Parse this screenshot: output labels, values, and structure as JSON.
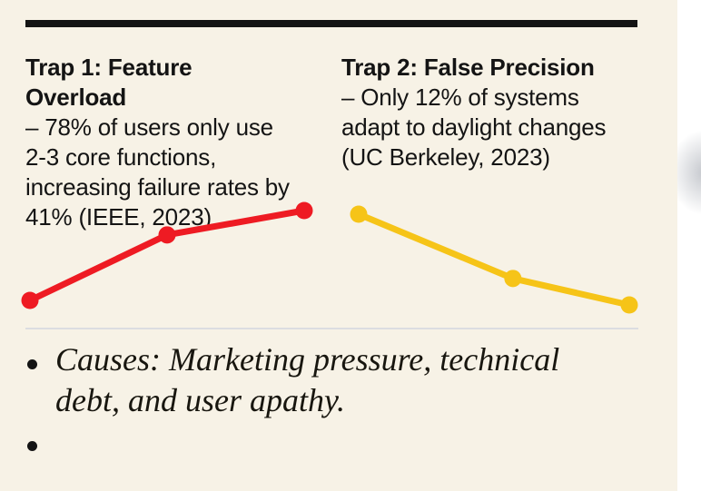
{
  "page": {
    "background": "#f7f2e6",
    "ink": "#141414",
    "divider_color": "#dcdde1",
    "margin_strip_color": "#ffffff"
  },
  "captions": [
    {
      "title": "Trap 1: Feature Overload",
      "body": "– 78% of users only use 2-3 core functions, increasing failure rates by 41% (IEEE, 2023)"
    },
    {
      "title": "Trap 2: False Precision",
      "body": "– Only 12% of systems adapt to daylight changes (UC Berkeley, 2023)"
    }
  ],
  "chart_data": [
    {
      "type": "line",
      "title": "Trap 1: Feature Overload",
      "x": [
        0,
        0.5,
        1
      ],
      "values": [
        20,
        55,
        68
      ],
      "trend": "rising",
      "color": "#ee1b23",
      "marker": "dot",
      "axes": "none",
      "legend": "none"
    },
    {
      "type": "line",
      "title": "Trap 2: False Precision",
      "x": [
        0,
        0.57,
        1
      ],
      "values": [
        68,
        34,
        20
      ],
      "trend": "falling",
      "color": "#f6c418",
      "marker": "dot",
      "axes": "none",
      "legend": "none"
    }
  ],
  "bullets": [
    {
      "text": "Causes: Marketing pressure, technical debt, and user apathy."
    },
    {
      "text": ""
    }
  ]
}
